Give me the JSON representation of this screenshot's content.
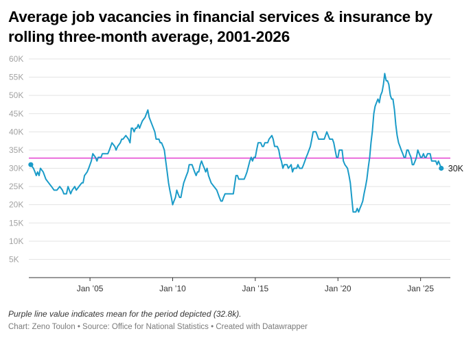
{
  "chart_data": {
    "type": "line",
    "title": "Average job vacancies in financial services & insurance by rolling three-month average, 2001-2026",
    "notes": "Purple line value indicates mean for the period depicted (32.8k).",
    "footer": {
      "chart_by": "Chart: Zeno Toulon",
      "source": "Source: Office for National Statistics",
      "tool": "Created with Datawrapper",
      "separator": "•"
    },
    "xlabel": "",
    "ylabel": "",
    "xlim": [
      2001.3,
      2026.8
    ],
    "ylim": [
      0,
      60000
    ],
    "grid": true,
    "legend": "none",
    "x_ticks": [
      {
        "value": 2005,
        "label": "Jan ’05"
      },
      {
        "value": 2010,
        "label": "Jan ’10"
      },
      {
        "value": 2015,
        "label": "Jan ’15"
      },
      {
        "value": 2020,
        "label": "Jan ’20"
      },
      {
        "value": 2025,
        "label": "Jan ’25"
      }
    ],
    "y_ticks": [
      {
        "value": 5000,
        "label": "5K"
      },
      {
        "value": 10000,
        "label": "10K"
      },
      {
        "value": 15000,
        "label": "15K"
      },
      {
        "value": 20000,
        "label": "20K"
      },
      {
        "value": 25000,
        "label": "25K"
      },
      {
        "value": 30000,
        "label": "30K"
      },
      {
        "value": 35000,
        "label": "35K"
      },
      {
        "value": 40000,
        "label": "40K"
      },
      {
        "value": 45000,
        "label": "45K"
      },
      {
        "value": 50000,
        "label": "50K"
      },
      {
        "value": 55000,
        "label": "55K"
      },
      {
        "value": 60000,
        "label": "60K"
      }
    ],
    "series": [
      {
        "color": "#1a9bc8",
        "end_label": "30K",
        "points": [
          [
            2001.42,
            31000
          ],
          [
            2001.58,
            30000
          ],
          [
            2001.67,
            29000
          ],
          [
            2001.75,
            28000
          ],
          [
            2001.83,
            29000
          ],
          [
            2001.92,
            28000
          ],
          [
            2002.0,
            30000
          ],
          [
            2002.17,
            29000
          ],
          [
            2002.33,
            27000
          ],
          [
            2002.5,
            26000
          ],
          [
            2002.67,
            25000
          ],
          [
            2002.83,
            24000
          ],
          [
            2003.0,
            24000
          ],
          [
            2003.17,
            25000
          ],
          [
            2003.33,
            24000
          ],
          [
            2003.42,
            23000
          ],
          [
            2003.58,
            23000
          ],
          [
            2003.67,
            25000
          ],
          [
            2003.83,
            23000
          ],
          [
            2003.92,
            24000
          ],
          [
            2004.08,
            25000
          ],
          [
            2004.17,
            24000
          ],
          [
            2004.33,
            25000
          ],
          [
            2004.5,
            26000
          ],
          [
            2004.58,
            26000
          ],
          [
            2004.67,
            28000
          ],
          [
            2004.83,
            29000
          ],
          [
            2004.92,
            30000
          ],
          [
            2005.0,
            31000
          ],
          [
            2005.08,
            32000
          ],
          [
            2005.17,
            34000
          ],
          [
            2005.33,
            33000
          ],
          [
            2005.42,
            32000
          ],
          [
            2005.5,
            33000
          ],
          [
            2005.67,
            33000
          ],
          [
            2005.75,
            34000
          ],
          [
            2005.92,
            34000
          ],
          [
            2006.08,
            34000
          ],
          [
            2006.17,
            35000
          ],
          [
            2006.33,
            37000
          ],
          [
            2006.5,
            36000
          ],
          [
            2006.58,
            35000
          ],
          [
            2006.67,
            36000
          ],
          [
            2006.83,
            37000
          ],
          [
            2006.92,
            38000
          ],
          [
            2007.0,
            38000
          ],
          [
            2007.17,
            39000
          ],
          [
            2007.33,
            38000
          ],
          [
            2007.42,
            37000
          ],
          [
            2007.5,
            41000
          ],
          [
            2007.58,
            41000
          ],
          [
            2007.67,
            40000
          ],
          [
            2007.75,
            41000
          ],
          [
            2007.83,
            41000
          ],
          [
            2007.92,
            42000
          ],
          [
            2008.0,
            41000
          ],
          [
            2008.08,
            42000
          ],
          [
            2008.17,
            43000
          ],
          [
            2008.33,
            44000
          ],
          [
            2008.5,
            46000
          ],
          [
            2008.58,
            44000
          ],
          [
            2008.75,
            42000
          ],
          [
            2008.92,
            40000
          ],
          [
            2009.0,
            38000
          ],
          [
            2009.17,
            38000
          ],
          [
            2009.25,
            37000
          ],
          [
            2009.33,
            37000
          ],
          [
            2009.42,
            36000
          ],
          [
            2009.5,
            35000
          ],
          [
            2009.58,
            32000
          ],
          [
            2009.67,
            29000
          ],
          [
            2009.75,
            26000
          ],
          [
            2009.83,
            24000
          ],
          [
            2009.92,
            22000
          ],
          [
            2010.0,
            20000
          ],
          [
            2010.08,
            21000
          ],
          [
            2010.17,
            22000
          ],
          [
            2010.25,
            24000
          ],
          [
            2010.33,
            23000
          ],
          [
            2010.42,
            22000
          ],
          [
            2010.5,
            22000
          ],
          [
            2010.58,
            24000
          ],
          [
            2010.67,
            26000
          ],
          [
            2010.83,
            28000
          ],
          [
            2010.92,
            29000
          ],
          [
            2011.0,
            31000
          ],
          [
            2011.17,
            31000
          ],
          [
            2011.25,
            30000
          ],
          [
            2011.33,
            29000
          ],
          [
            2011.42,
            28000
          ],
          [
            2011.5,
            29000
          ],
          [
            2011.58,
            29000
          ],
          [
            2011.67,
            31000
          ],
          [
            2011.75,
            32000
          ],
          [
            2011.83,
            31000
          ],
          [
            2011.92,
            30000
          ],
          [
            2012.0,
            29000
          ],
          [
            2012.08,
            30000
          ],
          [
            2012.17,
            28000
          ],
          [
            2012.33,
            26000
          ],
          [
            2012.5,
            25000
          ],
          [
            2012.67,
            24000
          ],
          [
            2012.75,
            23000
          ],
          [
            2012.83,
            22000
          ],
          [
            2012.92,
            21000
          ],
          [
            2013.0,
            21000
          ],
          [
            2013.08,
            22000
          ],
          [
            2013.17,
            23000
          ],
          [
            2013.33,
            23000
          ],
          [
            2013.5,
            23000
          ],
          [
            2013.67,
            23000
          ],
          [
            2013.83,
            28000
          ],
          [
            2013.92,
            28000
          ],
          [
            2014.0,
            27000
          ],
          [
            2014.17,
            27000
          ],
          [
            2014.33,
            27000
          ],
          [
            2014.42,
            28000
          ],
          [
            2014.5,
            29000
          ],
          [
            2014.67,
            32000
          ],
          [
            2014.75,
            33000
          ],
          [
            2014.83,
            32000
          ],
          [
            2014.92,
            33000
          ],
          [
            2015.0,
            33000
          ],
          [
            2015.08,
            35000
          ],
          [
            2015.17,
            37000
          ],
          [
            2015.33,
            37000
          ],
          [
            2015.42,
            36000
          ],
          [
            2015.5,
            36000
          ],
          [
            2015.58,
            37000
          ],
          [
            2015.75,
            37000
          ],
          [
            2015.83,
            38000
          ],
          [
            2016.0,
            39000
          ],
          [
            2016.08,
            38000
          ],
          [
            2016.17,
            36000
          ],
          [
            2016.33,
            36000
          ],
          [
            2016.42,
            35000
          ],
          [
            2016.5,
            33000
          ],
          [
            2016.58,
            32000
          ],
          [
            2016.67,
            30000
          ],
          [
            2016.75,
            31000
          ],
          [
            2016.92,
            31000
          ],
          [
            2017.0,
            30000
          ],
          [
            2017.17,
            31000
          ],
          [
            2017.25,
            29000
          ],
          [
            2017.33,
            30000
          ],
          [
            2017.5,
            30000
          ],
          [
            2017.58,
            31000
          ],
          [
            2017.67,
            30000
          ],
          [
            2017.83,
            30000
          ],
          [
            2017.92,
            31000
          ],
          [
            2018.0,
            32000
          ],
          [
            2018.08,
            33000
          ],
          [
            2018.17,
            34000
          ],
          [
            2018.33,
            36000
          ],
          [
            2018.42,
            38000
          ],
          [
            2018.5,
            40000
          ],
          [
            2018.67,
            40000
          ],
          [
            2018.75,
            39000
          ],
          [
            2018.83,
            38000
          ],
          [
            2018.92,
            38000
          ],
          [
            2019.17,
            38000
          ],
          [
            2019.33,
            40000
          ],
          [
            2019.5,
            38000
          ],
          [
            2019.67,
            38000
          ],
          [
            2019.75,
            37000
          ],
          [
            2019.83,
            35000
          ],
          [
            2019.92,
            33000
          ],
          [
            2020.0,
            33000
          ],
          [
            2020.08,
            35000
          ],
          [
            2020.25,
            35000
          ],
          [
            2020.33,
            32000
          ],
          [
            2020.42,
            31000
          ],
          [
            2020.58,
            30000
          ],
          [
            2020.67,
            28000
          ],
          [
            2020.75,
            26000
          ],
          [
            2020.83,
            22000
          ],
          [
            2020.92,
            18000
          ],
          [
            2021.08,
            18000
          ],
          [
            2021.17,
            19000
          ],
          [
            2021.25,
            18000
          ],
          [
            2021.33,
            19000
          ],
          [
            2021.42,
            20000
          ],
          [
            2021.5,
            21000
          ],
          [
            2021.58,
            23000
          ],
          [
            2021.67,
            25000
          ],
          [
            2021.75,
            27000
          ],
          [
            2021.83,
            30000
          ],
          [
            2021.92,
            33000
          ],
          [
            2022.0,
            37000
          ],
          [
            2022.08,
            40000
          ],
          [
            2022.17,
            45000
          ],
          [
            2022.25,
            47000
          ],
          [
            2022.33,
            48000
          ],
          [
            2022.42,
            49000
          ],
          [
            2022.5,
            48000
          ],
          [
            2022.58,
            50000
          ],
          [
            2022.67,
            51000
          ],
          [
            2022.75,
            53000
          ],
          [
            2022.83,
            56000
          ],
          [
            2022.92,
            54000
          ],
          [
            2023.0,
            54000
          ],
          [
            2023.08,
            53000
          ],
          [
            2023.17,
            50000
          ],
          [
            2023.25,
            49000
          ],
          [
            2023.33,
            49000
          ],
          [
            2023.42,
            46000
          ],
          [
            2023.5,
            42000
          ],
          [
            2023.58,
            39000
          ],
          [
            2023.67,
            37000
          ],
          [
            2023.75,
            36000
          ],
          [
            2023.83,
            35000
          ],
          [
            2023.92,
            34000
          ],
          [
            2024.0,
            33000
          ],
          [
            2024.08,
            33000
          ],
          [
            2024.17,
            35000
          ],
          [
            2024.25,
            35000
          ],
          [
            2024.33,
            34000
          ],
          [
            2024.42,
            33000
          ],
          [
            2024.5,
            31000
          ],
          [
            2024.58,
            31000
          ],
          [
            2024.67,
            32000
          ],
          [
            2024.75,
            33000
          ],
          [
            2024.83,
            35000
          ],
          [
            2024.92,
            34000
          ],
          [
            2025.0,
            33000
          ],
          [
            2025.08,
            33000
          ],
          [
            2025.17,
            34000
          ],
          [
            2025.25,
            33000
          ],
          [
            2025.33,
            33000
          ],
          [
            2025.42,
            34000
          ],
          [
            2025.58,
            34000
          ],
          [
            2025.67,
            32000
          ],
          [
            2025.83,
            32000
          ],
          [
            2025.92,
            32000
          ],
          [
            2026.0,
            31000
          ],
          [
            2026.08,
            32000
          ],
          [
            2026.17,
            31000
          ],
          [
            2026.25,
            30000
          ]
        ]
      }
    ],
    "reference_line": {
      "value": 32800,
      "color": "#e020c8"
    }
  }
}
